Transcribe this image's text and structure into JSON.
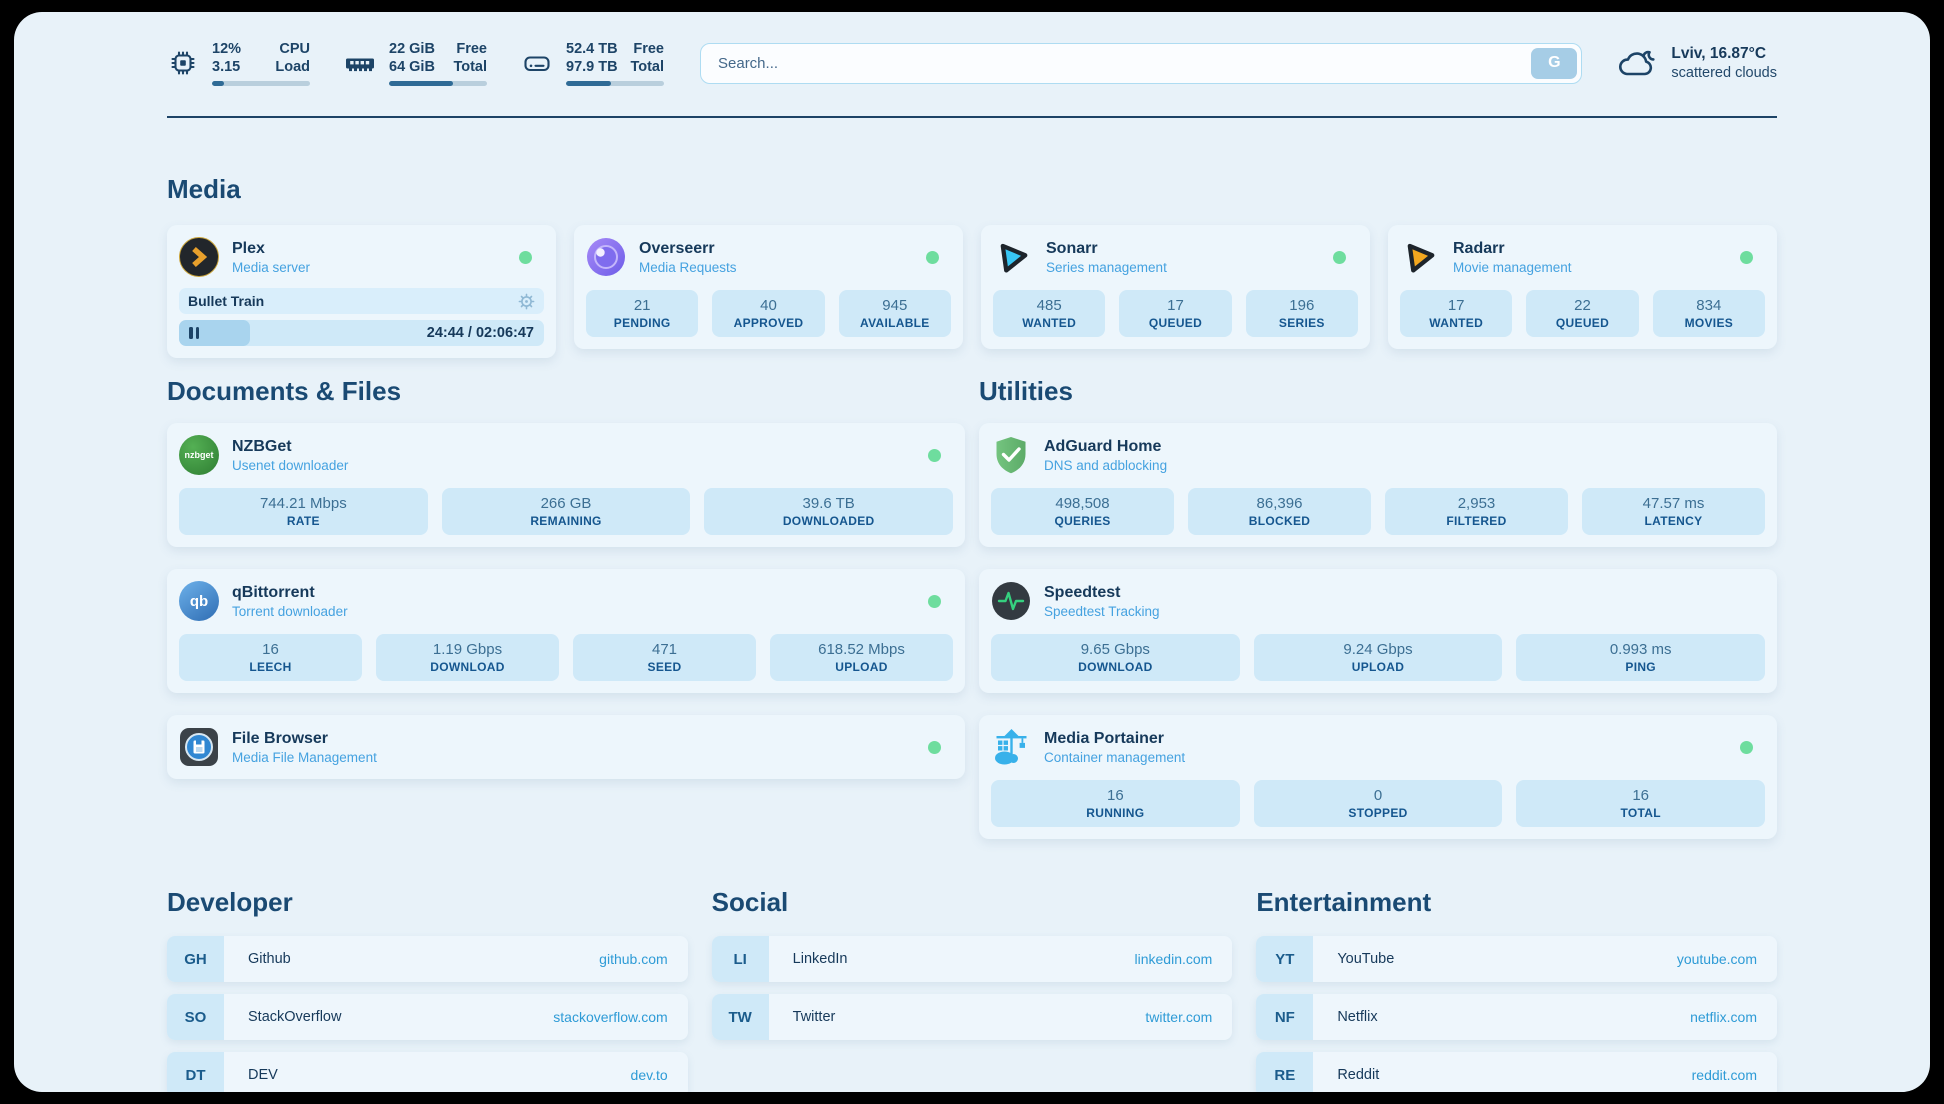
{
  "theme": {
    "outer_bg": "#000000",
    "page_bg": "#e8f2f9",
    "card_bg": "#edf6fc",
    "stat_bg": "#cfe9f8",
    "navy_text": "#16395a",
    "subtitle_blue": "#45a2e0",
    "link_blue": "#2e9bd6",
    "status_green": "#6edd9e",
    "progress_fill": "#2f6b96"
  },
  "topbar": {
    "monitors": [
      {
        "icon": "cpu-icon",
        "values": [
          "12%",
          "3.15"
        ],
        "labels": [
          "CPU",
          "Load"
        ],
        "progress_pct": 12
      },
      {
        "icon": "memory-icon",
        "values": [
          "22 GiB",
          "64 GiB"
        ],
        "labels": [
          "Free",
          "Total"
        ],
        "progress_pct": 65
      },
      {
        "icon": "disk-icon",
        "values": [
          "52.4 TB",
          "97.9 TB"
        ],
        "labels": [
          "Free",
          "Total"
        ],
        "progress_pct": 46
      }
    ],
    "search": {
      "placeholder": "Search...",
      "button_label": "G"
    },
    "weather": {
      "icon": "cloud-icon",
      "location": "Lviv, 16.87°C",
      "condition": "scattered clouds"
    }
  },
  "media": {
    "title": "Media",
    "plex": {
      "name": "Plex",
      "subtitle": "Media server",
      "online": true,
      "now_playing": {
        "title": "Bullet Train",
        "time_display": "24:44 / 02:06:47",
        "elapsed": "24:44",
        "duration": "02:06:47",
        "progress_pct": 19.5,
        "state": "paused"
      }
    },
    "cards": [
      {
        "name": "Overseerr",
        "subtitle": "Media Requests",
        "online": true,
        "stats": [
          {
            "value": "21",
            "label": "PENDING"
          },
          {
            "value": "40",
            "label": "APPROVED"
          },
          {
            "value": "945",
            "label": "AVAILABLE"
          }
        ]
      },
      {
        "name": "Sonarr",
        "subtitle": "Series management",
        "online": true,
        "stats": [
          {
            "value": "485",
            "label": "WANTED"
          },
          {
            "value": "17",
            "label": "QUEUED"
          },
          {
            "value": "196",
            "label": "SERIES"
          }
        ]
      },
      {
        "name": "Radarr",
        "subtitle": "Movie management",
        "online": true,
        "stats": [
          {
            "value": "17",
            "label": "WANTED"
          },
          {
            "value": "22",
            "label": "QUEUED"
          },
          {
            "value": "834",
            "label": "MOVIES"
          }
        ]
      }
    ]
  },
  "documents": {
    "title": "Documents & Files",
    "cards": [
      {
        "name": "NZBGet",
        "subtitle": "Usenet downloader",
        "online": true,
        "icon_text": "nzbget",
        "stats": [
          {
            "value": "744.21 Mbps",
            "label": "RATE"
          },
          {
            "value": "266 GB",
            "label": "REMAINING"
          },
          {
            "value": "39.6 TB",
            "label": "DOWNLOADED"
          }
        ]
      },
      {
        "name": "qBittorrent",
        "subtitle": "Torrent downloader",
        "online": true,
        "icon_text": "qb",
        "stats": [
          {
            "value": "16",
            "label": "LEECH"
          },
          {
            "value": "1.19 Gbps",
            "label": "DOWNLOAD"
          },
          {
            "value": "471",
            "label": "SEED"
          },
          {
            "value": "618.52 Mbps",
            "label": "UPLOAD"
          }
        ]
      },
      {
        "name": "File Browser",
        "subtitle": "Media File Management",
        "online": true,
        "stats": []
      }
    ]
  },
  "utilities": {
    "title": "Utilities",
    "cards": [
      {
        "name": "AdGuard Home",
        "subtitle": "DNS and adblocking",
        "online": false,
        "stats": [
          {
            "value": "498,508",
            "label": "QUERIES"
          },
          {
            "value": "86,396",
            "label": "BLOCKED"
          },
          {
            "value": "2,953",
            "label": "FILTERED"
          },
          {
            "value": "47.57 ms",
            "label": "LATENCY"
          }
        ]
      },
      {
        "name": "Speedtest",
        "subtitle": "Speedtest Tracking",
        "online": false,
        "stats": [
          {
            "value": "9.65 Gbps",
            "label": "DOWNLOAD"
          },
          {
            "value": "9.24 Gbps",
            "label": "UPLOAD"
          },
          {
            "value": "0.993 ms",
            "label": "PING"
          }
        ]
      },
      {
        "name": "Media Portainer",
        "subtitle": "Container management",
        "online": true,
        "stats": [
          {
            "value": "16",
            "label": "RUNNING"
          },
          {
            "value": "0",
            "label": "STOPPED"
          },
          {
            "value": "16",
            "label": "TOTAL"
          }
        ]
      }
    ]
  },
  "links": {
    "developer": {
      "title": "Developer",
      "items": [
        {
          "tag": "GH",
          "name": "Github",
          "url": "github.com"
        },
        {
          "tag": "SO",
          "name": "StackOverflow",
          "url": "stackoverflow.com"
        },
        {
          "tag": "DT",
          "name": "DEV",
          "url": "dev.to"
        }
      ]
    },
    "social": {
      "title": "Social",
      "items": [
        {
          "tag": "LI",
          "name": "LinkedIn",
          "url": "linkedin.com"
        },
        {
          "tag": "TW",
          "name": "Twitter",
          "url": "twitter.com"
        }
      ]
    },
    "entertainment": {
      "title": "Entertainment",
      "items": [
        {
          "tag": "YT",
          "name": "YouTube",
          "url": "youtube.com"
        },
        {
          "tag": "NF",
          "name": "Netflix",
          "url": "netflix.com"
        },
        {
          "tag": "RE",
          "name": "Reddit",
          "url": "reddit.com"
        }
      ]
    }
  }
}
